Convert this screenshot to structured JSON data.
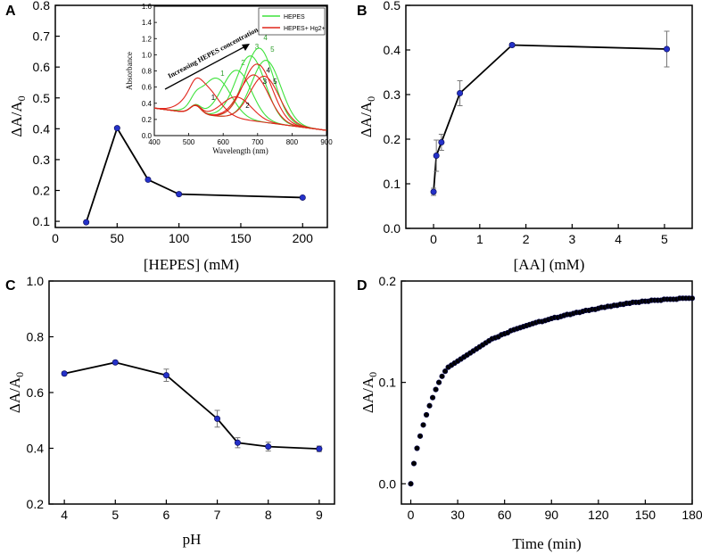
{
  "chart_data": [
    {
      "panel_label": "A",
      "type": "line",
      "xlabel": "[HEPES] (mM)",
      "ylabel": "ΔA/A0",
      "xlim": [
        0,
        220
      ],
      "ylim": [
        0.08,
        0.8
      ],
      "xticks": [
        0,
        50,
        100,
        150,
        200
      ],
      "yticks": [
        0.1,
        0.2,
        0.3,
        0.4,
        0.5,
        0.6,
        0.7,
        0.8
      ],
      "x": [
        25,
        50,
        75,
        100,
        200
      ],
      "y": [
        0.097,
        0.402,
        0.235,
        0.188,
        0.177
      ],
      "marker_color": "#2431c8",
      "inset": {
        "type": "line",
        "xlabel": "Wavelength (nm)",
        "ylabel": "Absorbance",
        "xlim": [
          400,
          900
        ],
        "ylim": [
          0,
          1.6
        ],
        "xticks": [
          400,
          500,
          600,
          700,
          800,
          900
        ],
        "yticks": [
          0.0,
          0.2,
          0.4,
          0.6,
          0.8,
          1.0,
          1.2,
          1.4,
          1.6
        ],
        "annotation": "Increasing HEPES concentration",
        "legend": [
          {
            "name": "HEPES",
            "color": "#3fe23c"
          },
          {
            "name": "HEPES+ Hg2+",
            "color": "#e1261c"
          }
        ],
        "series": [
          {
            "group": "HEPES",
            "label": "1",
            "peak_x": 580,
            "peak_y": 0.72
          },
          {
            "group": "HEPES",
            "label": "2",
            "peak_x": 640,
            "peak_y": 0.85
          },
          {
            "group": "HEPES",
            "label": "3",
            "peak_x": 680,
            "peak_y": 1.05
          },
          {
            "group": "HEPES",
            "label": "4",
            "peak_x": 705,
            "peak_y": 1.16
          },
          {
            "group": "HEPES",
            "label": "5",
            "peak_x": 725,
            "peak_y": 1.02
          },
          {
            "group": "HEPES+ Hg2+",
            "label": "1",
            "peak_x": 540,
            "peak_y": 0.62
          },
          {
            "group": "HEPES+ Hg2+",
            "label": "2",
            "peak_x": 640,
            "peak_y": 0.52
          },
          {
            "group": "HEPES+ Hg2+",
            "label": "3",
            "peak_x": 690,
            "peak_y": 0.82
          },
          {
            "group": "HEPES+ Hg2+",
            "label": "4",
            "peak_x": 700,
            "peak_y": 0.96
          },
          {
            "group": "HEPES+ Hg2+",
            "label": "5",
            "peak_x": 720,
            "peak_y": 0.82
          }
        ]
      }
    },
    {
      "panel_label": "B",
      "type": "line",
      "xlabel": "[AA] (mM)",
      "ylabel": "ΔA/A0",
      "xlim": [
        -0.6,
        5.6
      ],
      "ylim": [
        0,
        0.5
      ],
      "xticks": [
        0,
        1,
        2,
        3,
        4,
        5
      ],
      "yticks": [
        0.0,
        0.1,
        0.2,
        0.3,
        0.4,
        0.5
      ],
      "x": [
        0.0,
        0.06,
        0.17,
        0.57,
        1.7,
        5.05
      ],
      "y": [
        0.082,
        0.163,
        0.193,
        0.303,
        0.411,
        0.402
      ],
      "yerr": [
        0.008,
        0.035,
        0.018,
        0.028,
        0.004,
        0.04
      ],
      "marker_color": "#2431c8"
    },
    {
      "panel_label": "C",
      "type": "line",
      "xlabel": "pH",
      "ylabel": "ΔA/A0",
      "xlim": [
        3.7,
        9.3
      ],
      "ylim": [
        0.2,
        1.0
      ],
      "xticks": [
        4,
        5,
        6,
        7,
        8,
        9
      ],
      "yticks": [
        0.2,
        0.4,
        0.6,
        0.8,
        1.0
      ],
      "x": [
        4,
        5,
        6,
        7,
        7.4,
        8,
        9
      ],
      "y": [
        0.668,
        0.708,
        0.662,
        0.506,
        0.42,
        0.406,
        0.398
      ],
      "yerr": [
        0.006,
        0.006,
        0.022,
        0.03,
        0.018,
        0.016,
        0.01
      ],
      "marker_color": "#2431c8"
    },
    {
      "panel_label": "D",
      "type": "scatter",
      "xlabel": "Time (min)",
      "ylabel": "ΔA/A0",
      "xlim": [
        -6,
        180
      ],
      "ylim": [
        -0.02,
        0.2
      ],
      "xticks": [
        0,
        30,
        60,
        90,
        120,
        150,
        180
      ],
      "yticks": [
        0.0,
        0.1,
        0.2
      ],
      "model": "y = 0.183*(1-exp(-t/22)) approx, sampled every 2 min from 0 to 180",
      "x": [
        0,
        2,
        4,
        6,
        8,
        10,
        12,
        14,
        16,
        18,
        20,
        22,
        24,
        26,
        28,
        30,
        32,
        34,
        36,
        38,
        40,
        42,
        44,
        46,
        48,
        50,
        52,
        54,
        56,
        58,
        60,
        62,
        64,
        66,
        68,
        70,
        72,
        74,
        76,
        78,
        80,
        82,
        84,
        86,
        88,
        90,
        92,
        94,
        96,
        98,
        100,
        102,
        104,
        106,
        108,
        110,
        112,
        114,
        116,
        118,
        120,
        122,
        124,
        126,
        128,
        130,
        132,
        134,
        136,
        138,
        140,
        142,
        144,
        146,
        148,
        150,
        152,
        154,
        156,
        158,
        160,
        162,
        164,
        166,
        168,
        170,
        172,
        174,
        176,
        178,
        180
      ],
      "y": [
        0.0,
        0.02,
        0.035,
        0.047,
        0.058,
        0.068,
        0.077,
        0.085,
        0.093,
        0.1,
        0.106,
        0.111,
        0.115,
        0.117,
        0.119,
        0.121,
        0.123,
        0.125,
        0.127,
        0.129,
        0.131,
        0.133,
        0.135,
        0.137,
        0.139,
        0.141,
        0.143,
        0.144,
        0.145,
        0.147,
        0.148,
        0.149,
        0.151,
        0.152,
        0.153,
        0.154,
        0.155,
        0.156,
        0.157,
        0.158,
        0.159,
        0.16,
        0.16,
        0.161,
        0.162,
        0.163,
        0.164,
        0.164,
        0.165,
        0.166,
        0.167,
        0.167,
        0.168,
        0.169,
        0.169,
        0.17,
        0.171,
        0.171,
        0.172,
        0.172,
        0.173,
        0.174,
        0.174,
        0.175,
        0.175,
        0.176,
        0.176,
        0.177,
        0.177,
        0.178,
        0.178,
        0.179,
        0.179,
        0.179,
        0.18,
        0.18,
        0.18,
        0.181,
        0.181,
        0.181,
        0.181,
        0.182,
        0.182,
        0.182,
        0.182,
        0.182,
        0.183,
        0.183,
        0.183,
        0.183,
        0.183
      ],
      "marker_color": "#000000"
    }
  ]
}
